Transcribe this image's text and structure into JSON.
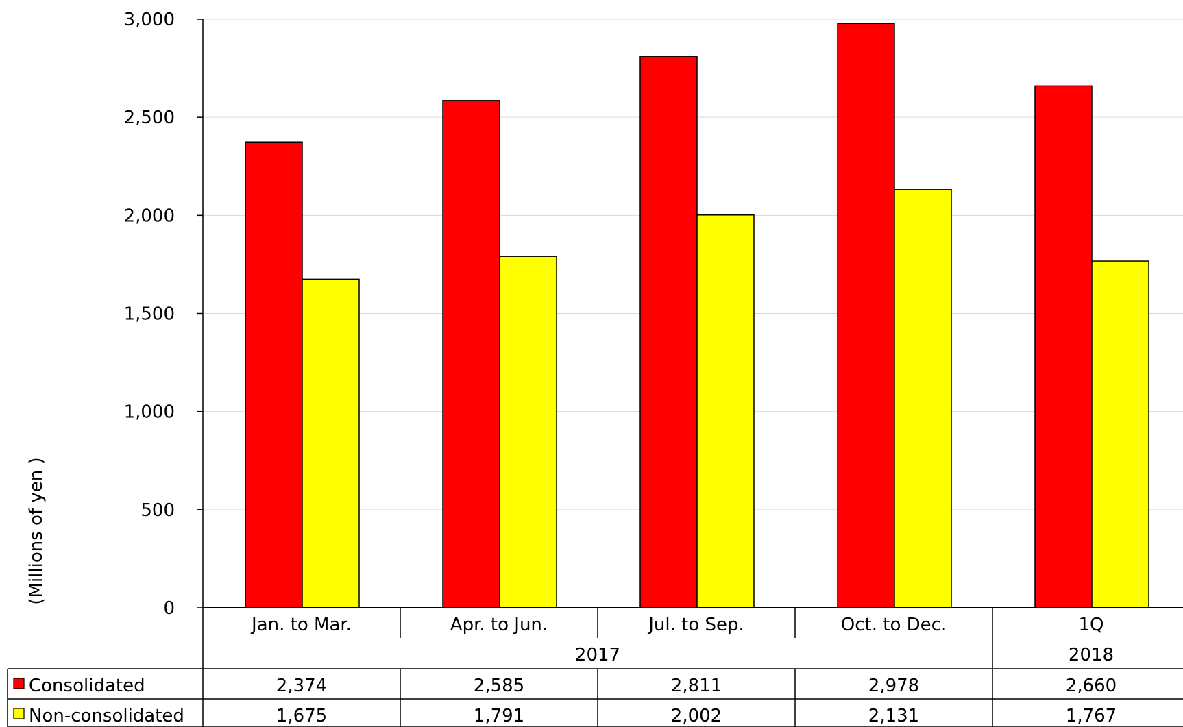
{
  "chart_data": {
    "type": "bar",
    "ylabel": "(Millions of yen )",
    "ylim": [
      0,
      3000
    ],
    "yticks": [
      0,
      500,
      1000,
      1500,
      2000,
      2500,
      3000
    ],
    "ytick_labels": [
      "0",
      "500",
      "1,000",
      "1,500",
      "2,000",
      "2,500",
      "3,000"
    ],
    "grid": true,
    "categories": [
      "Jan. to Mar.",
      "Apr. to Jun.",
      "Jul. to Sep.",
      "Oct. to Dec.",
      "1Q"
    ],
    "year_groups": [
      {
        "label": "2017",
        "span": 4
      },
      {
        "label": "2018",
        "span": 1
      }
    ],
    "series": [
      {
        "name": "Consolidated",
        "color": "#ff0000",
        "values": [
          2374,
          2585,
          2811,
          2978,
          2660
        ],
        "display_values": [
          "2,374",
          "2,585",
          "2,811",
          "2,978",
          "2,660"
        ]
      },
      {
        "name": "Non-consolidated",
        "color": "#ffff00",
        "values": [
          1675,
          1791,
          2002,
          2131,
          1767
        ],
        "display_values": [
          "1,675",
          "1,791",
          "2,002",
          "2,131",
          "1,767"
        ]
      }
    ],
    "legend_placement": "data-table"
  }
}
